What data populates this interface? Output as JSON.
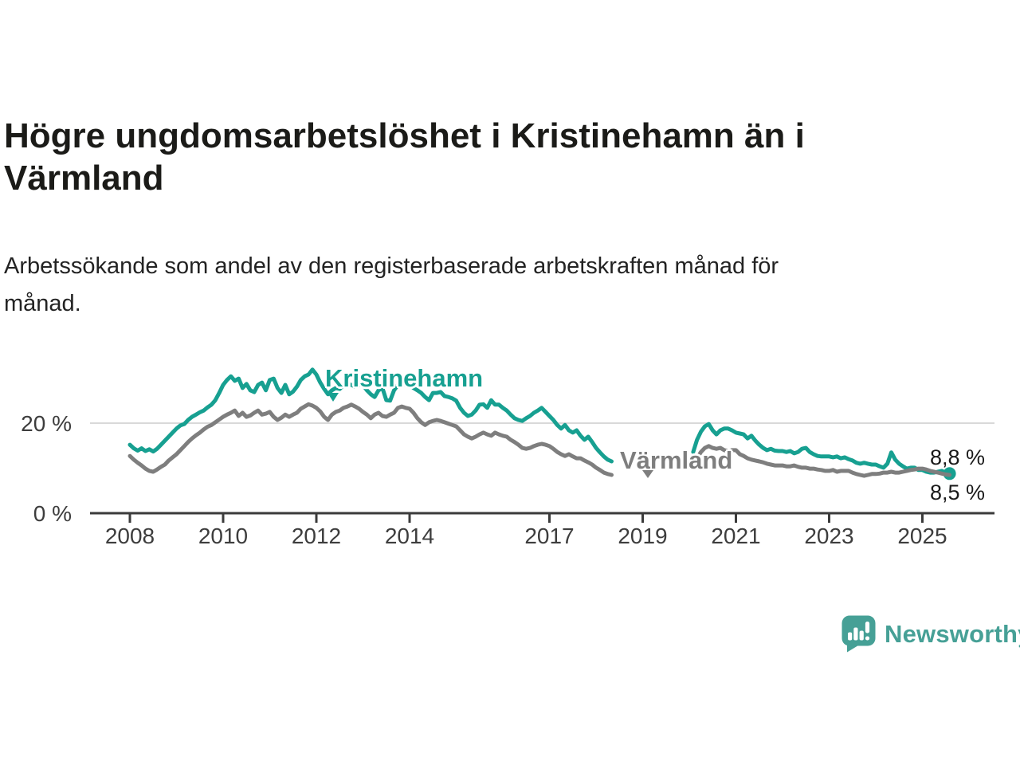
{
  "title": {
    "line1": "Högre ungdomsarbetslöshet i Kristinehamn än i",
    "line2": "Värmland"
  },
  "subtitle": {
    "line1": "Arbetssökande som andel av den registerbaserade arbetskraften månad för",
    "line2": "månad."
  },
  "branding": {
    "name": "Newsworthy",
    "icon": "bar-chart-speech-bubble-icon",
    "color": "#46a096"
  },
  "colors": {
    "kristinehamn": "#17a091",
    "varmland": "#7e7e7e",
    "axis": "#3b3b3b",
    "gridline": "#d9d9d9",
    "tick_label": "#3d3d3d"
  },
  "chart_data": {
    "type": "line",
    "unit": "percent",
    "grid": "single horizontal gridline at 20 %",
    "legend_position": "inline labels on lines",
    "x_axis": {
      "ticks": [
        {
          "year": 2008,
          "label": "2008"
        },
        {
          "year": 2010,
          "label": "2010"
        },
        {
          "year": 2012,
          "label": "2012"
        },
        {
          "year": 2014,
          "label": "2014"
        },
        {
          "year": 2017,
          "label": "2017"
        },
        {
          "year": 2019,
          "label": "2019"
        },
        {
          "year": 2021,
          "label": "2021"
        },
        {
          "year": 2023,
          "label": "2023"
        },
        {
          "year": 2025,
          "label": "2025"
        }
      ],
      "range_years": [
        2007.1,
        2026.5
      ]
    },
    "y_axis": {
      "ticks": [
        {
          "value": 20,
          "label": "20 %",
          "gridline": true
        },
        {
          "value": 0,
          "label": "0 %",
          "gridline": false
        }
      ],
      "range": [
        0,
        34
      ]
    },
    "data_gap": {
      "from": "2018-06",
      "to": "2020-01"
    },
    "series": [
      {
        "id": "kristinehamn",
        "name": "Kristinehamn",
        "color": "#17a091",
        "end_label": "8,8 %",
        "final_value": 8.8,
        "end_dot": true,
        "segments": [
          {
            "start": "2008-01",
            "values": [
              15.2,
              14.4,
              13.9,
              14.4,
              13.8,
              14.2,
              13.7,
              14.3,
              15.2,
              16.1,
              17.0,
              17.9,
              18.8,
              19.5,
              19.8,
              20.7,
              21.4,
              21.9,
              22.4,
              22.8,
              23.5,
              24.1,
              25.1,
              26.7,
              28.5,
              29.6,
              30.4,
              29.4,
              29.9,
              27.8,
              28.7,
              27.3,
              26.9,
              28.5,
              29.0,
              27.3,
              29.6,
              29.9,
              27.8,
              26.7,
              28.5,
              26.4,
              27.0,
              28.1,
              29.6,
              30.4,
              30.8,
              31.9,
              30.8,
              29.0,
              27.6,
              26.4,
              27.3,
              27.8,
              27.6,
              28.5,
              28.7,
              28.5,
              28.1,
              28.5,
              28.5,
              27.3,
              26.4,
              25.8,
              27.3,
              27.8,
              25.1,
              25.0,
              27.3,
              28.5,
              28.7,
              28.5,
              28.5,
              27.8,
              27.3,
              26.7,
              25.8,
              25.1,
              26.7,
              26.7,
              26.9,
              26.0,
              25.8,
              25.5,
              25.0,
              23.4,
              22.3,
              21.6,
              21.9,
              22.8,
              24.1,
              24.2,
              23.4,
              25.1,
              24.1,
              24.1,
              23.4,
              22.8,
              21.9,
              21.1,
              20.7,
              20.5,
              21.1,
              21.6,
              22.3,
              22.8,
              23.4,
              22.5,
              21.6,
              20.7,
              19.6,
              18.8,
              19.6,
              18.4,
              17.9,
              18.4,
              17.2,
              16.3,
              17.0,
              15.8,
              14.5,
              13.5,
              12.6,
              11.9,
              11.5
            ]
          },
          {
            "start": "2020-02",
            "values": [
              13.6,
              16.3,
              18.1,
              19.3,
              19.8,
              18.4,
              17.5,
              18.4,
              18.8,
              18.8,
              18.4,
              17.9,
              17.7,
              17.5,
              16.6,
              17.2,
              16.1,
              15.2,
              14.5,
              14.0,
              14.3,
              13.9,
              13.8,
              13.8,
              13.6,
              13.8,
              13.3,
              13.6,
              14.3,
              14.5,
              13.6,
              13.1,
              12.7,
              12.6,
              12.6,
              12.6,
              12.4,
              12.6,
              12.2,
              12.4,
              12.0,
              11.7,
              11.2,
              11.0,
              11.2,
              11.0,
              10.8,
              10.8,
              10.4,
              10.1,
              11.0,
              13.5,
              11.9,
              11.0,
              10.4,
              9.9,
              10.1,
              10.1,
              9.6,
              9.6,
              9.2,
              9.0,
              9.0,
              9.2,
              9.4,
              9.0,
              8.8
            ]
          }
        ]
      },
      {
        "id": "varmland",
        "name": "Värmland",
        "color": "#7e7e7e",
        "end_label": "8,5 %",
        "final_value": 8.5,
        "end_dot": false,
        "segments": [
          {
            "start": "2008-01",
            "values": [
              12.7,
              11.9,
              11.2,
              10.6,
              9.9,
              9.4,
              9.2,
              9.7,
              10.3,
              10.8,
              11.7,
              12.4,
              13.1,
              14.0,
              14.9,
              15.8,
              16.6,
              17.3,
              17.9,
              18.6,
              19.2,
              19.6,
              20.2,
              20.8,
              21.4,
              21.9,
              22.3,
              22.8,
              21.6,
              22.3,
              21.4,
              21.7,
              22.3,
              22.8,
              21.9,
              22.1,
              22.5,
              21.4,
              20.7,
              21.2,
              21.9,
              21.4,
              21.9,
              22.3,
              23.2,
              23.7,
              24.2,
              23.9,
              23.4,
              22.6,
              21.4,
              20.7,
              21.9,
              22.5,
              22.8,
              23.4,
              23.7,
              24.1,
              23.7,
              23.2,
              22.5,
              21.9,
              21.1,
              21.9,
              22.3,
              21.6,
              21.4,
              21.9,
              22.3,
              23.4,
              23.7,
              23.4,
              23.2,
              22.3,
              21.1,
              20.2,
              19.6,
              20.2,
              20.5,
              20.7,
              20.5,
              20.2,
              19.9,
              19.6,
              19.3,
              18.4,
              17.5,
              17.0,
              16.6,
              17.0,
              17.5,
              17.9,
              17.5,
              17.2,
              17.9,
              17.5,
              17.2,
              17.0,
              16.3,
              15.8,
              15.2,
              14.5,
              14.3,
              14.5,
              14.9,
              15.2,
              15.4,
              15.2,
              14.9,
              14.3,
              13.6,
              13.1,
              12.7,
              13.1,
              12.6,
              12.2,
              12.2,
              11.7,
              11.3,
              10.8,
              10.1,
              9.6,
              9.0,
              8.7,
              8.5
            ]
          },
          {
            "start": "2020-02",
            "values": [
              10.6,
              12.2,
              13.6,
              14.5,
              14.9,
              14.5,
              14.3,
              14.5,
              14.0,
              13.8,
              14.0,
              14.0,
              13.1,
              12.7,
              12.2,
              11.9,
              11.7,
              11.5,
              11.3,
              11.0,
              10.8,
              10.6,
              10.6,
              10.6,
              10.4,
              10.4,
              10.6,
              10.3,
              10.1,
              10.1,
              9.9,
              9.9,
              9.7,
              9.6,
              9.4,
              9.4,
              9.6,
              9.2,
              9.4,
              9.4,
              9.4,
              9.0,
              8.7,
              8.5,
              8.3,
              8.5,
              8.7,
              8.7,
              8.8,
              9.0,
              9.0,
              9.2,
              9.0,
              9.0,
              9.2,
              9.4,
              9.6,
              9.7,
              9.9,
              9.9,
              9.7,
              9.4,
              9.2,
              9.0,
              8.8,
              8.6,
              8.5
            ]
          }
        ]
      }
    ]
  }
}
